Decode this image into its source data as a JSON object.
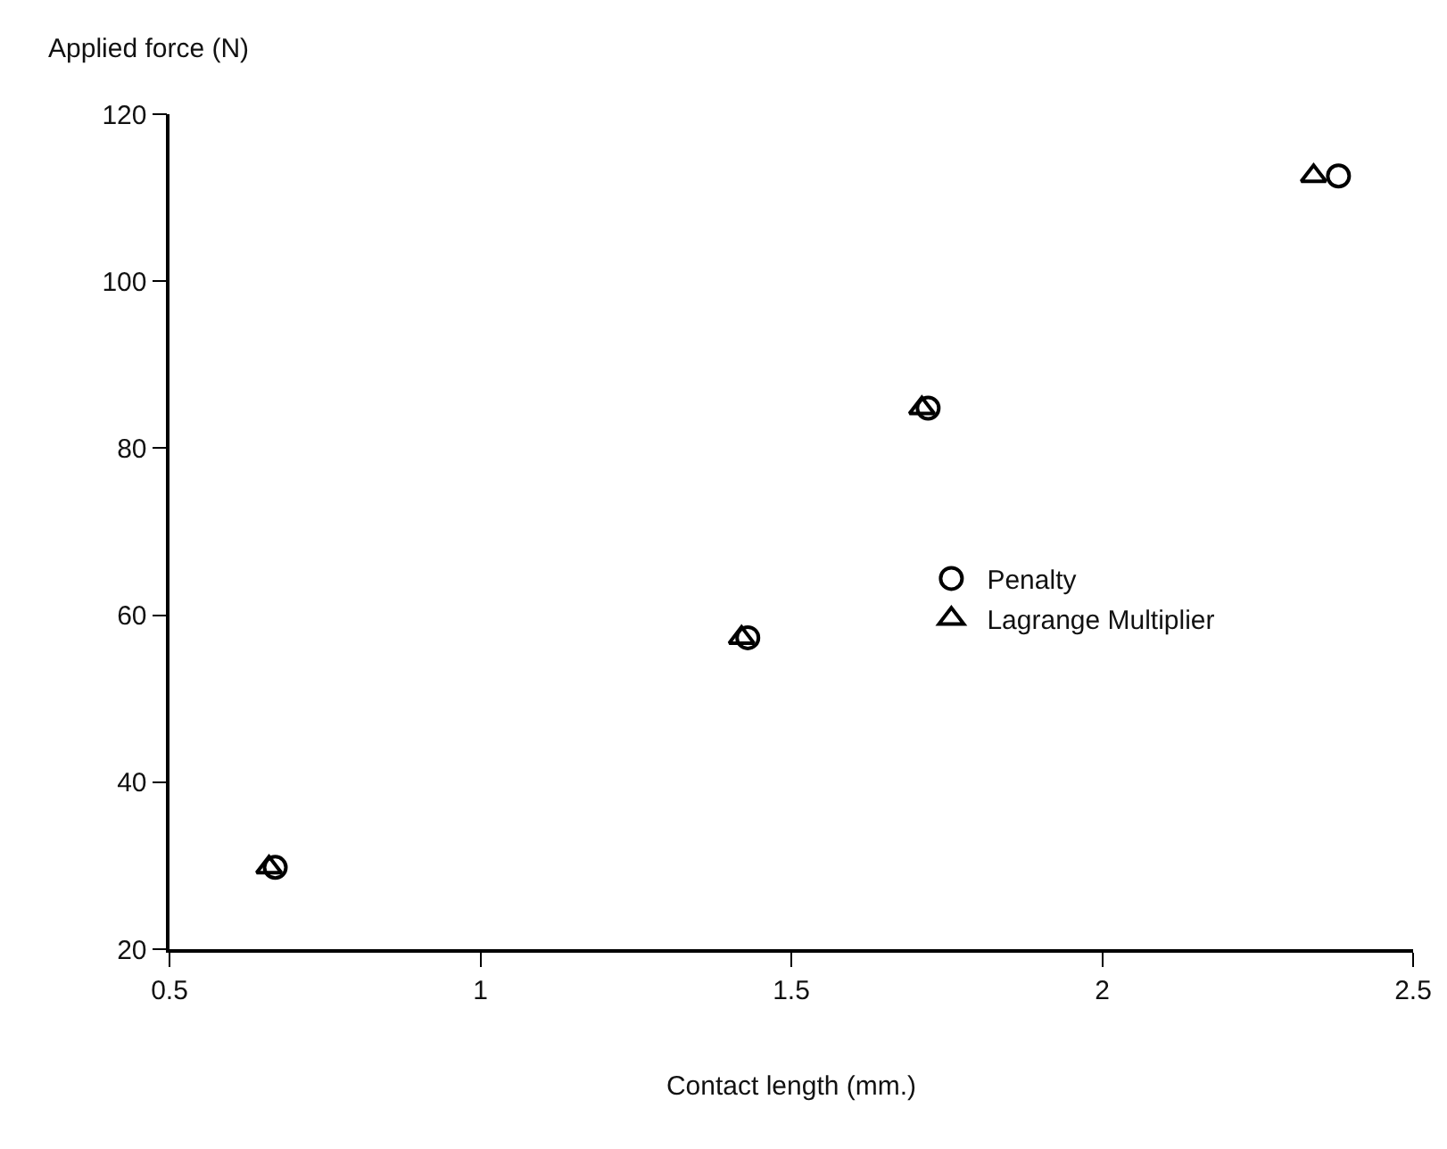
{
  "chart_data": {
    "type": "scatter",
    "xlabel": "Contact length (mm.)",
    "ylabel": "Applied force (N)",
    "xlim": [
      0.5,
      2.5
    ],
    "xticks": [
      0.5,
      1,
      1.5,
      2,
      2.5
    ],
    "ylim": [
      20,
      120
    ],
    "yticks": [
      20,
      40,
      60,
      80,
      100,
      120
    ],
    "grid": false,
    "legend": "right",
    "series": [
      {
        "name": "Penalty",
        "color": "#000000",
        "marker": "circle",
        "x": [
          0.67,
          1.43,
          1.72,
          2.38
        ],
        "values": [
          29.8,
          57.3,
          84.8,
          112.6
        ]
      },
      {
        "name": "Lagrange Multiplier",
        "color": "#000000",
        "marker": "triangle",
        "x": [
          0.66,
          1.42,
          1.71,
          2.34
        ],
        "values": [
          29.8,
          57.3,
          84.8,
          112.6
        ]
      }
    ]
  }
}
